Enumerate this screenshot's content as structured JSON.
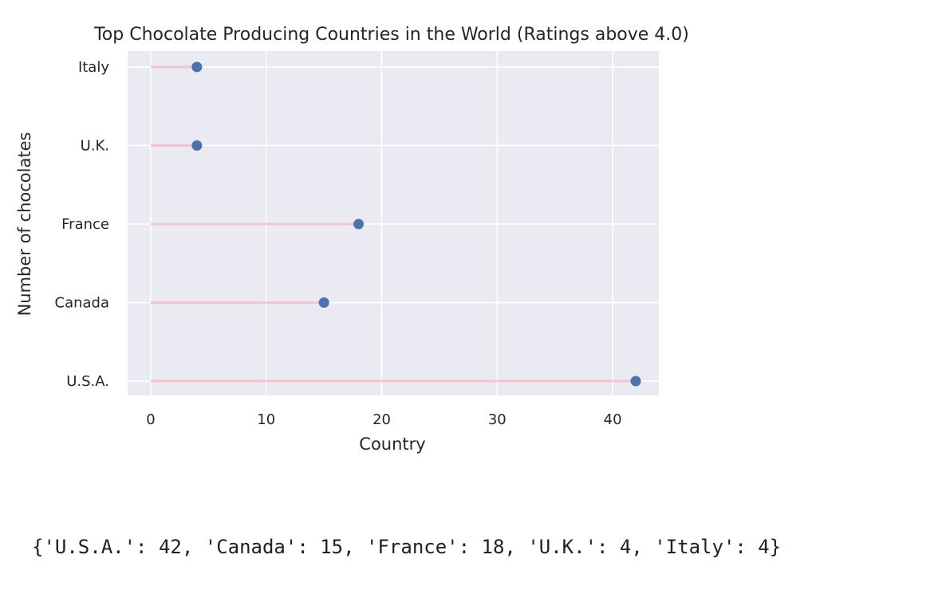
{
  "chart_data": {
    "type": "lollipop",
    "orientation": "horizontal",
    "title": "Top Chocolate Producing Countries in the World (Ratings above 4.0)",
    "xlabel": "Country",
    "ylabel": "Number of chocolates",
    "categories": [
      "U.S.A.",
      "Canada",
      "France",
      "U.K.",
      "Italy"
    ],
    "values": [
      42,
      15,
      18,
      4,
      4
    ],
    "xlim": [
      -2,
      44
    ],
    "xticks": [
      0,
      10,
      20,
      30,
      40
    ],
    "grid": true,
    "colors": {
      "background": "#eaeaf2",
      "grid": "#ffffff",
      "stem": "#f6c4cc",
      "marker": "#4c72b0"
    }
  },
  "output": {
    "text": "{'U.S.A.': 42, 'Canada': 15, 'France': 18, 'U.K.': 4, 'Italy': 4}"
  }
}
